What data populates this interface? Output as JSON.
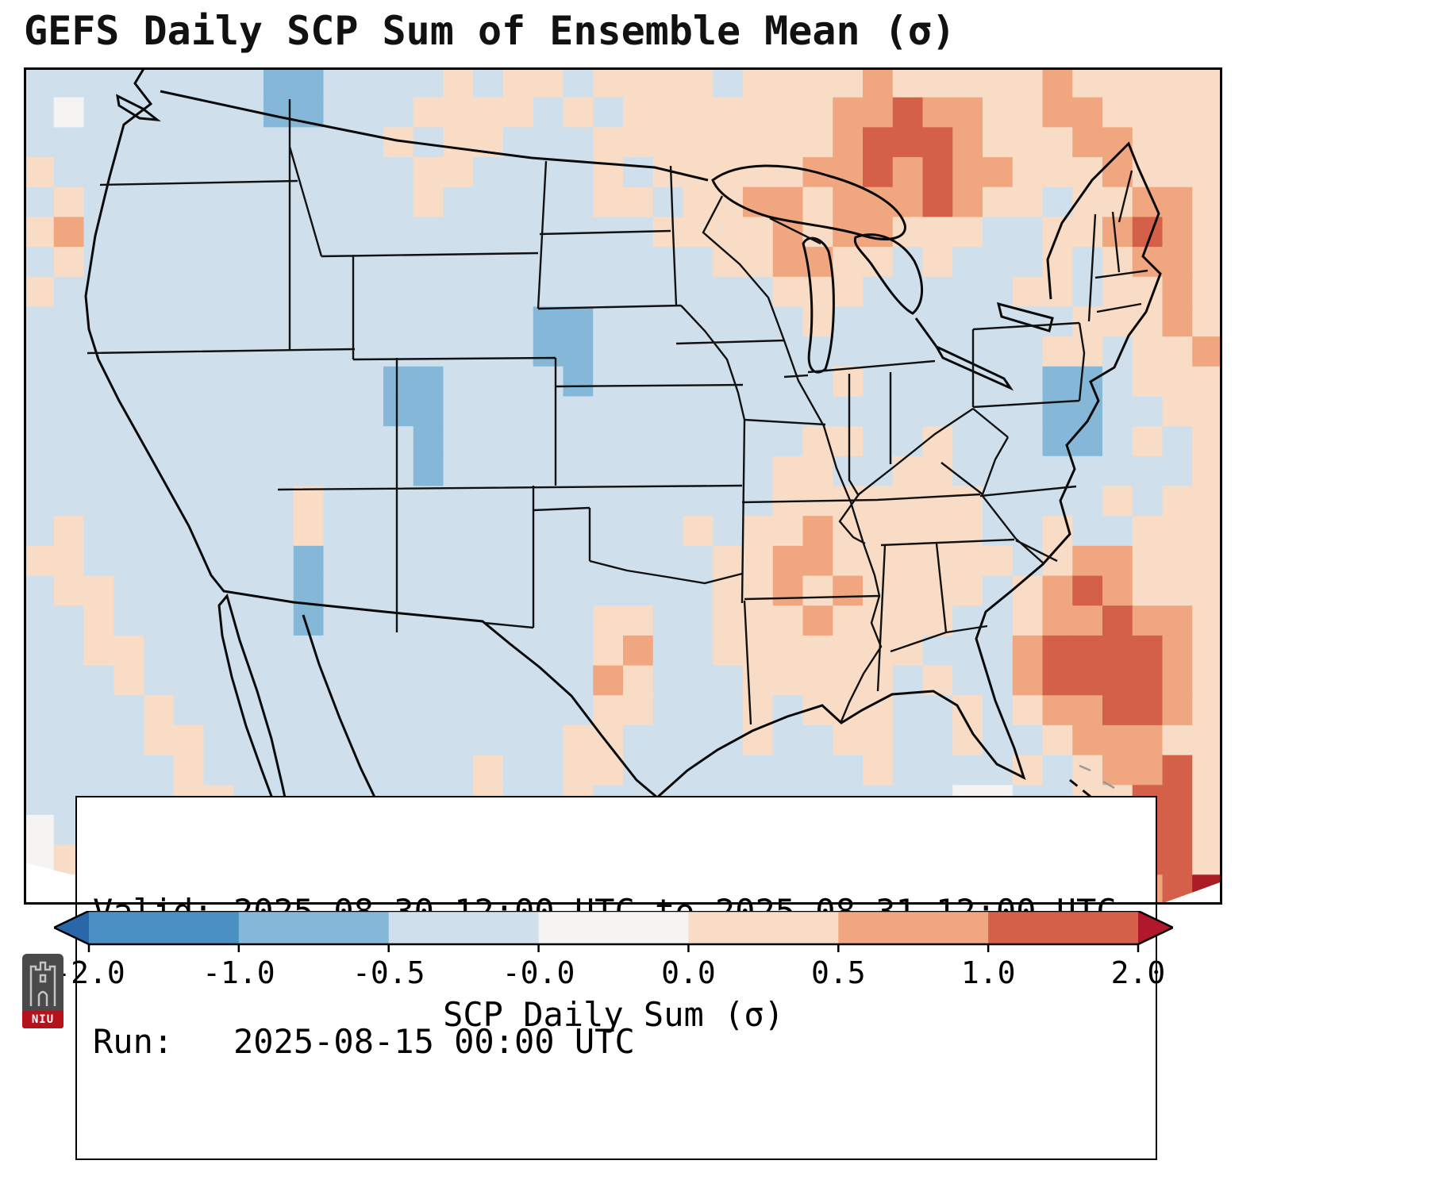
{
  "title": "GEFS Daily SCP Sum of Ensemble Mean (σ)",
  "info_box": {
    "line1": "Valid: 2025-08-30 12:00 UTC to 2025-08-31 12:00 UTC",
    "line2": "Run:   2025-08-15 00:00 UTC"
  },
  "logo": {
    "text": "NIU"
  },
  "chart_data": {
    "type": "heatmap",
    "title": "GEFS Daily SCP Sum of Ensemble Mean (σ)",
    "valid": "2025-08-30 12:00 UTC to 2025-08-31 12:00 UTC",
    "run": "2025-08-15 00:00 UTC",
    "colorbar": {
      "label": "SCP Daily Sum (σ)",
      "orientation": "horizontal",
      "tick_labels": [
        "-2.0",
        "-1.0",
        "-0.5",
        "-0.0",
        "0.0",
        "0.5",
        "1.0",
        "2.0"
      ],
      "levels": [
        -2.0,
        -1.0,
        -0.5,
        -0.0,
        0.0,
        0.5,
        1.0,
        2.0
      ],
      "segment_colors": [
        "#4a90c2",
        "#85b8d8",
        "#cfe0ec",
        "#f6f4f2",
        "#f9dcc5",
        "#f0a67f",
        "#d4604a"
      ],
      "under_arrow_color": "#2a67a8",
      "over_arrow_color": "#b2182b"
    },
    "grid": {
      "cols": 40,
      "rows": 28,
      "value_key": {
        "3": -1.5,
        "2": -0.7,
        "1": -0.25,
        "0": 0.0,
        "a": 0.25,
        "b": 0.7,
        "c": 1.5,
        "d": 2.2
      },
      "color_key": {
        "3": "#4a90c2",
        "2": "#85b8d8",
        "1": "#cfe0ec",
        "0": "#f6f4f2",
        "a": "#f9dcc5",
        "b": "#f0a67f",
        "c": "#d4604a",
        "d": "#a91c24"
      },
      "rows_encoded": [
        "11111111221111a1aa1aaaa1aaaabaaaaabaaaaa",
        "1011111122111aaaa1a1aaaaaaabbcbbaabbaaaa",
        "111111111111a1aa111aaaaaaaabcccbaaabbaaa",
        "a111111111111aa1111a1aaaaabbcbcbbaaabaaa",
        "1a11111111111a11111aa1aabbabbbcbaa1aabba",
        "ab1111111111111111111aaaababbaaa11aabcba",
        "1a111111111111111111111aabbaa1a111a1abba",
        "a111111111111111111111111aaa11111aa1aaba",
        "11111111111111111221111111a11111111aaaba",
        "1111111111111111122111111111111111aa1aab",
        "111111111111221111211111111a111111221aaa",
        "11111111111122111111111111111111112211aa",
        "11111111111112111111111111aa11a111221a1a",
        "1111111111111211111111111aa11aa11111111a",
        "111111111a111111111111111aaaaaaa1111a1aa",
        "1a1111111a111111111111a1aabaaaaa11a11aaa",
        "aa111111121111111111111aabbaaaaaa1abbaaa",
        "1aa11111121111111111111aababaaaa1abcbaaa",
        "11a1111112111111111aa11aaabaaaa11abbcbba",
        "11aa111111111111111ab11aaaaaaa111bccccba",
        "111a111111111111111ba111aaaaa1a11bccccba",
        "1111a11111111111111aa111a1aaa11a1abbccba",
        "1111aa111111111111aa1111a11aa11a11abbbaa",
        "11111a111111111a11aa11111111a1111a1abbca",
        "11111aa11111111a11a1111111111110011aacca",
        "011111a11111111aa111111aa111110011aabcca",
        "0aaaa1aaaa1111adda1aabadda1aa11a11aabcca",
        "00aaaaaaaa1111adda1abbddaaaaa11aa1abbbcd"
      ]
    }
  }
}
